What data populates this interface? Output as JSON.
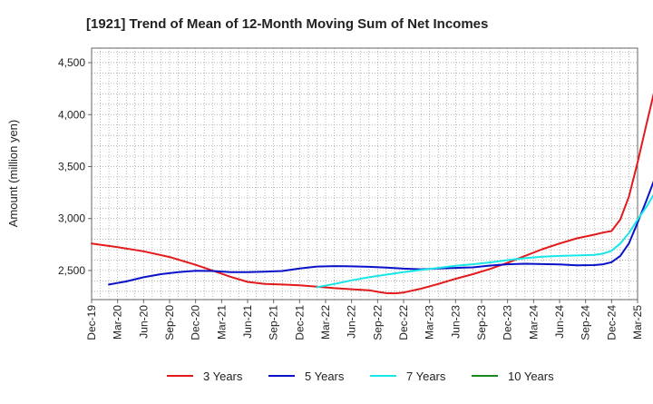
{
  "chart_data": {
    "type": "line",
    "title": "[1921]  Trend of Mean of 12-Month Moving Sum of Net Incomes",
    "ylabel": "Amount (million yen)",
    "xlabel": "",
    "ylim": [
      2220,
      4640
    ],
    "y_ticks": [
      2500,
      3000,
      3500,
      4000,
      4500
    ],
    "y_tick_labels": [
      "2,500",
      "3,000",
      "3,500",
      "4,000",
      "4,500"
    ],
    "x_tick_labels": [
      "Dec-19",
      "Mar-20",
      "Jun-20",
      "Sep-20",
      "Dec-20",
      "Mar-21",
      "Jun-21",
      "Sep-21",
      "Dec-21",
      "Mar-22",
      "Jun-22",
      "Sep-22",
      "Dec-22",
      "Mar-23",
      "Jun-23",
      "Sep-23",
      "Dec-23",
      "Mar-24",
      "Jun-24",
      "Sep-24",
      "Dec-24",
      "Mar-25"
    ],
    "grid": true,
    "legend_position": "bottom",
    "series": [
      {
        "name": "3 Years",
        "color": "#e31a1c",
        "points": [
          [
            0,
            2760
          ],
          [
            3,
            2725
          ],
          [
            6,
            2685
          ],
          [
            9,
            2630
          ],
          [
            12,
            2555
          ],
          [
            15,
            2470
          ],
          [
            16,
            2440
          ],
          [
            18,
            2390
          ],
          [
            20,
            2370
          ],
          [
            22,
            2365
          ],
          [
            24,
            2358
          ],
          [
            26,
            2345
          ],
          [
            28,
            2330
          ],
          [
            30,
            2320
          ],
          [
            32,
            2310
          ],
          [
            33,
            2295
          ],
          [
            34,
            2282
          ],
          [
            35,
            2280
          ],
          [
            36,
            2288
          ],
          [
            38,
            2325
          ],
          [
            40,
            2370
          ],
          [
            42,
            2420
          ],
          [
            44,
            2465
          ],
          [
            46,
            2515
          ],
          [
            48,
            2575
          ],
          [
            50,
            2640
          ],
          [
            52,
            2705
          ],
          [
            54,
            2760
          ],
          [
            56,
            2810
          ],
          [
            58,
            2845
          ],
          [
            59,
            2865
          ],
          [
            60,
            2880
          ],
          [
            61,
            2990
          ],
          [
            62,
            3210
          ],
          [
            63,
            3540
          ],
          [
            64,
            3900
          ],
          [
            65,
            4250
          ],
          [
            66,
            4580
          ]
        ]
      },
      {
        "name": "5 Years",
        "color": "#0a12c8",
        "points": [
          [
            2,
            2365
          ],
          [
            4,
            2395
          ],
          [
            6,
            2435
          ],
          [
            8,
            2465
          ],
          [
            10,
            2485
          ],
          [
            12,
            2498
          ],
          [
            14,
            2495
          ],
          [
            16,
            2485
          ],
          [
            18,
            2485
          ],
          [
            20,
            2488
          ],
          [
            22,
            2495
          ],
          [
            24,
            2520
          ],
          [
            26,
            2538
          ],
          [
            28,
            2542
          ],
          [
            30,
            2540
          ],
          [
            32,
            2535
          ],
          [
            34,
            2528
          ],
          [
            36,
            2518
          ],
          [
            38,
            2512
          ],
          [
            40,
            2520
          ],
          [
            42,
            2525
          ],
          [
            44,
            2530
          ],
          [
            46,
            2548
          ],
          [
            48,
            2560
          ],
          [
            50,
            2565
          ],
          [
            52,
            2562
          ],
          [
            54,
            2558
          ],
          [
            56,
            2550
          ],
          [
            58,
            2552
          ],
          [
            59,
            2560
          ],
          [
            60,
            2580
          ],
          [
            61,
            2640
          ],
          [
            62,
            2760
          ],
          [
            63,
            2960
          ],
          [
            64,
            3170
          ],
          [
            65,
            3390
          ],
          [
            66,
            3610
          ]
        ]
      },
      {
        "name": "7 Years",
        "color": "#19e6e6",
        "points": [
          [
            26,
            2340
          ],
          [
            28,
            2370
          ],
          [
            30,
            2405
          ],
          [
            32,
            2435
          ],
          [
            34,
            2460
          ],
          [
            36,
            2485
          ],
          [
            38,
            2505
          ],
          [
            40,
            2525
          ],
          [
            42,
            2545
          ],
          [
            44,
            2560
          ],
          [
            46,
            2578
          ],
          [
            48,
            2600
          ],
          [
            50,
            2618
          ],
          [
            52,
            2632
          ],
          [
            54,
            2640
          ],
          [
            56,
            2645
          ],
          [
            58,
            2650
          ],
          [
            59,
            2662
          ],
          [
            60,
            2690
          ],
          [
            61,
            2760
          ],
          [
            62,
            2860
          ],
          [
            63,
            2990
          ],
          [
            64,
            3110
          ],
          [
            65,
            3250
          ],
          [
            66,
            3390
          ]
        ]
      },
      {
        "name": "10 Years",
        "color": "#1a8a1a",
        "points": []
      }
    ]
  }
}
